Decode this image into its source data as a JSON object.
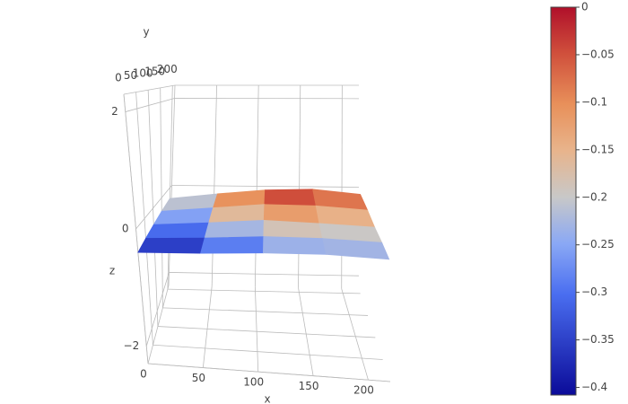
{
  "chart_data": {
    "type": "surface",
    "x_label": "x",
    "y_label": "y",
    "z_label": "z",
    "x": [
      0,
      55,
      110,
      165,
      220
    ],
    "y": [
      0,
      50,
      100,
      150,
      200
    ],
    "z": [
      [
        -0.4,
        -0.35,
        -0.28,
        -0.24,
        -0.26
      ],
      [
        -0.36,
        -0.3,
        -0.22,
        -0.2,
        -0.22
      ],
      [
        -0.32,
        -0.24,
        -0.15,
        -0.17,
        -0.2
      ],
      [
        -0.28,
        -0.18,
        -0.08,
        -0.08,
        -0.14
      ],
      [
        -0.25,
        -0.13,
        -0.03,
        0,
        -0.1
      ]
    ],
    "xlim": [
      0,
      220
    ],
    "ylim": [
      0,
      210
    ],
    "zlim": [
      -2.3,
      2.3
    ],
    "xticks": [
      0,
      50,
      100,
      150,
      200
    ],
    "yticks": [
      0,
      50,
      100,
      150,
      200
    ],
    "zticks": [
      {
        "value": -2,
        "label": "−2"
      },
      0,
      2
    ],
    "colorbar_range": [
      -0.408,
      0
    ],
    "colorbar_ticks": [
      0,
      {
        "value": -0.05,
        "label": "−0.05"
      },
      {
        "value": -0.1,
        "label": "−0.1"
      },
      {
        "value": -0.15,
        "label": "−0.15"
      },
      {
        "value": -0.2,
        "label": "−0.2"
      },
      {
        "value": -0.25,
        "label": "−0.25"
      },
      {
        "value": -0.3,
        "label": "−0.3"
      },
      {
        "value": -0.35,
        "label": "−0.35"
      },
      {
        "value": -0.4,
        "label": "−0.4"
      }
    ],
    "colorscale": [
      [
        0,
        "#0b0b99"
      ],
      [
        0.26,
        "#4a6ef0"
      ],
      [
        0.39,
        "#8aa8f5"
      ],
      [
        0.51,
        "#c8c8c8"
      ],
      [
        0.63,
        "#e8b48c"
      ],
      [
        0.75,
        "#e8905a"
      ],
      [
        0.88,
        "#d0503c"
      ],
      [
        1,
        "#b0102a"
      ]
    ],
    "grid": true
  }
}
